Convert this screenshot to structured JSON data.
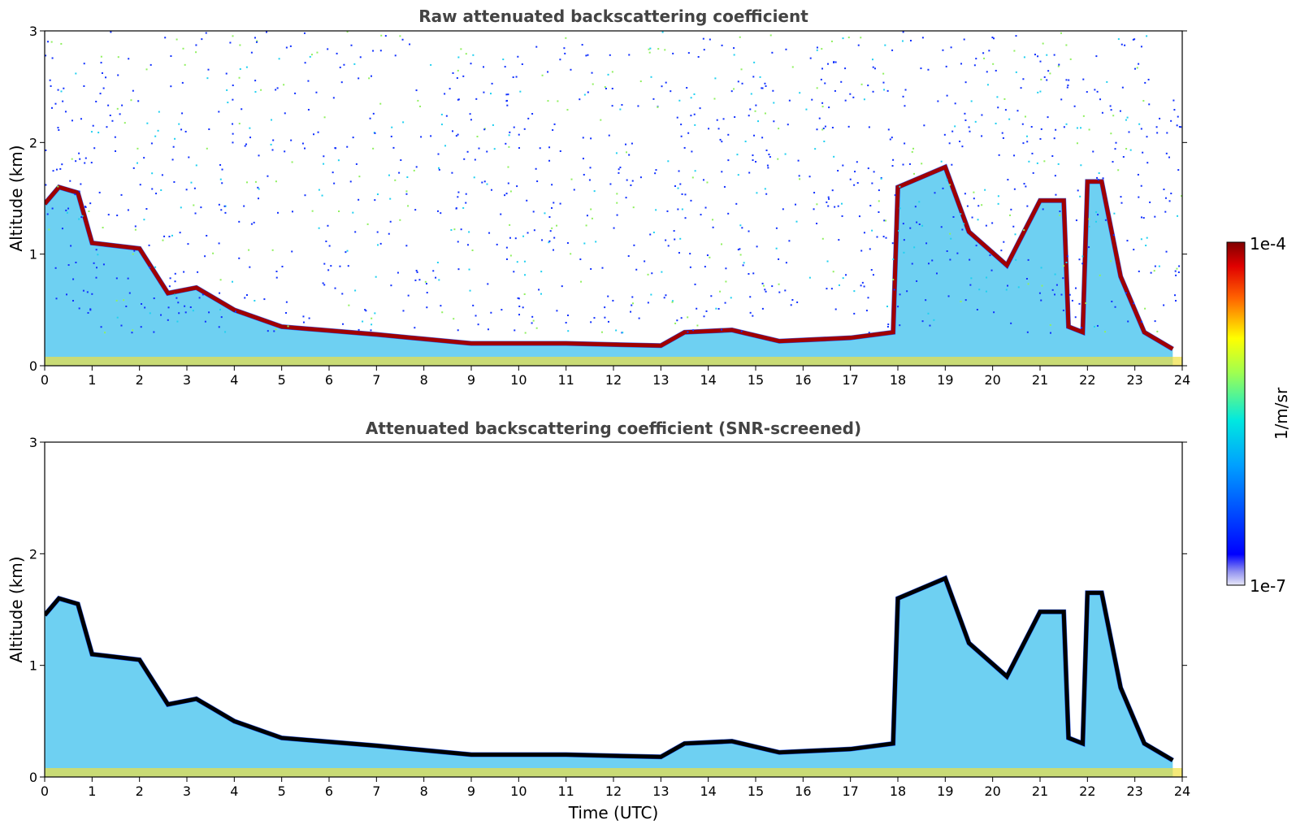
{
  "chart_data": [
    {
      "type": "heatmap",
      "title": "Raw attenuated backscattering coefficient",
      "xlabel": "",
      "ylabel": "Altitude (km)",
      "xlim": [
        0,
        24
      ],
      "ylim": [
        0,
        3
      ],
      "xticks": [
        "0",
        "1",
        "2",
        "3",
        "4",
        "5",
        "6",
        "7",
        "8",
        "9",
        "10",
        "11",
        "12",
        "13",
        "14",
        "15",
        "16",
        "17",
        "18",
        "19",
        "20",
        "21",
        "22",
        "23",
        "24"
      ],
      "yticks": [
        "0",
        "1",
        "2",
        "3"
      ],
      "layer_top_km": [
        {
          "t": 0.0,
          "alt": 1.45
        },
        {
          "t": 0.3,
          "alt": 1.6
        },
        {
          "t": 0.7,
          "alt": 1.55
        },
        {
          "t": 1.0,
          "alt": 1.1
        },
        {
          "t": 2.0,
          "alt": 1.05
        },
        {
          "t": 2.6,
          "alt": 0.65
        },
        {
          "t": 3.2,
          "alt": 0.7
        },
        {
          "t": 4.0,
          "alt": 0.5
        },
        {
          "t": 5.0,
          "alt": 0.35
        },
        {
          "t": 7.0,
          "alt": 0.28
        },
        {
          "t": 9.0,
          "alt": 0.2
        },
        {
          "t": 11.0,
          "alt": 0.2
        },
        {
          "t": 13.0,
          "alt": 0.18
        },
        {
          "t": 13.5,
          "alt": 0.3
        },
        {
          "t": 14.5,
          "alt": 0.32
        },
        {
          "t": 15.5,
          "alt": 0.22
        },
        {
          "t": 17.0,
          "alt": 0.25
        },
        {
          "t": 17.9,
          "alt": 0.3
        },
        {
          "t": 18.0,
          "alt": 1.6
        },
        {
          "t": 19.0,
          "alt": 1.78
        },
        {
          "t": 19.5,
          "alt": 1.2
        },
        {
          "t": 20.3,
          "alt": 0.9
        },
        {
          "t": 21.0,
          "alt": 1.48
        },
        {
          "t": 21.5,
          "alt": 1.48
        },
        {
          "t": 21.6,
          "alt": 0.35
        },
        {
          "t": 21.9,
          "alt": 0.3
        },
        {
          "t": 22.0,
          "alt": 1.65
        },
        {
          "t": 22.3,
          "alt": 1.65
        },
        {
          "t": 22.7,
          "alt": 0.8
        },
        {
          "t": 23.2,
          "alt": 0.3
        },
        {
          "t": 23.8,
          "alt": 0.15
        }
      ]
    },
    {
      "type": "heatmap",
      "title": "Attenuated backscattering coefficient (SNR-screened)",
      "xlabel": "Time (UTC)",
      "ylabel": "Altitude (km)",
      "xlim": [
        0,
        24
      ],
      "ylim": [
        0,
        3
      ],
      "xticks": [
        "0",
        "1",
        "2",
        "3",
        "4",
        "5",
        "6",
        "7",
        "8",
        "9",
        "10",
        "11",
        "12",
        "13",
        "14",
        "15",
        "16",
        "17",
        "18",
        "19",
        "20",
        "21",
        "22",
        "23",
        "24"
      ],
      "yticks": [
        "0",
        "1",
        "2",
        "3"
      ],
      "layer_top_km": [
        {
          "t": 0.0,
          "alt": 1.45
        },
        {
          "t": 0.3,
          "alt": 1.6
        },
        {
          "t": 0.7,
          "alt": 1.55
        },
        {
          "t": 1.0,
          "alt": 1.1
        },
        {
          "t": 2.0,
          "alt": 1.05
        },
        {
          "t": 2.6,
          "alt": 0.65
        },
        {
          "t": 3.2,
          "alt": 0.7
        },
        {
          "t": 4.0,
          "alt": 0.5
        },
        {
          "t": 5.0,
          "alt": 0.35
        },
        {
          "t": 7.0,
          "alt": 0.28
        },
        {
          "t": 9.0,
          "alt": 0.2
        },
        {
          "t": 11.0,
          "alt": 0.2
        },
        {
          "t": 13.0,
          "alt": 0.18
        },
        {
          "t": 13.5,
          "alt": 0.3
        },
        {
          "t": 14.5,
          "alt": 0.32
        },
        {
          "t": 15.5,
          "alt": 0.22
        },
        {
          "t": 17.0,
          "alt": 0.25
        },
        {
          "t": 17.9,
          "alt": 0.3
        },
        {
          "t": 18.0,
          "alt": 1.6
        },
        {
          "t": 19.0,
          "alt": 1.78
        },
        {
          "t": 19.5,
          "alt": 1.2
        },
        {
          "t": 20.3,
          "alt": 0.9
        },
        {
          "t": 21.0,
          "alt": 1.48
        },
        {
          "t": 21.5,
          "alt": 1.48
        },
        {
          "t": 21.6,
          "alt": 0.35
        },
        {
          "t": 21.9,
          "alt": 0.3
        },
        {
          "t": 22.0,
          "alt": 1.65
        },
        {
          "t": 22.3,
          "alt": 1.65
        },
        {
          "t": 22.7,
          "alt": 0.8
        },
        {
          "t": 23.2,
          "alt": 0.3
        },
        {
          "t": 23.8,
          "alt": 0.15
        }
      ]
    }
  ],
  "colorbar": {
    "label": "1/m/sr",
    "max_label": "1e-4",
    "min_label": "1e-7",
    "colormap": "jet",
    "colors": [
      "#e8e8f8",
      "#0000ff",
      "#00ffff",
      "#ffff00",
      "#ff0000",
      "#800000"
    ]
  }
}
